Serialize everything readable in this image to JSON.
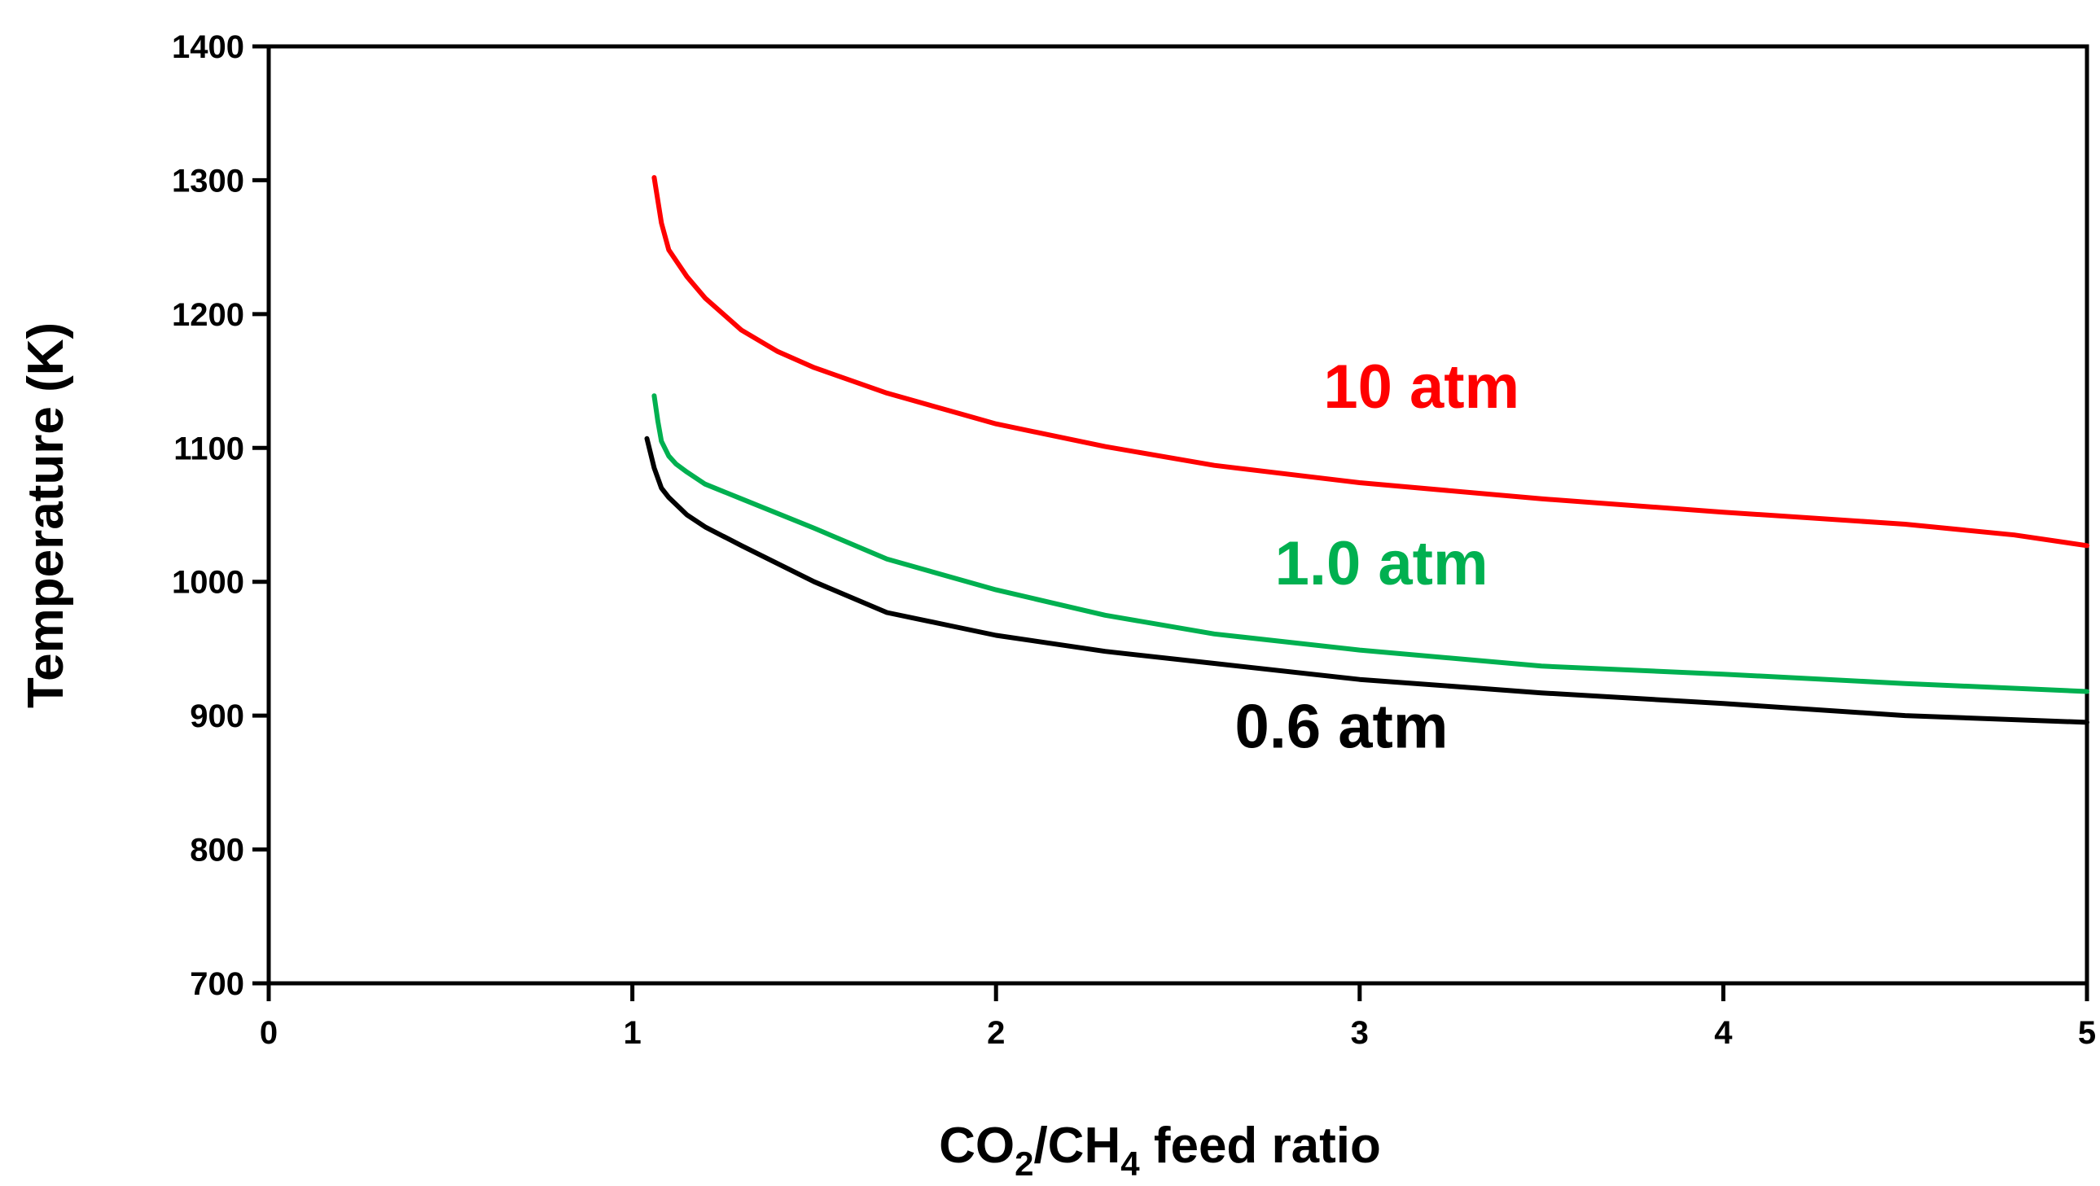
{
  "chart_data": {
    "type": "line",
    "title": "",
    "xlabel": {
      "parts": [
        {
          "text": "CO",
          "sub": false
        },
        {
          "text": "2",
          "sub": true
        },
        {
          "text": "/CH",
          "sub": false
        },
        {
          "text": "4",
          "sub": true
        },
        {
          "text": " feed ratio",
          "sub": false
        }
      ]
    },
    "ylabel": "Temperature (K)",
    "xlim": [
      0,
      5
    ],
    "ylim": [
      700,
      1400
    ],
    "xticks": [
      0,
      1,
      2,
      3,
      4,
      5
    ],
    "yticks": [
      700,
      800,
      900,
      1000,
      1100,
      1200,
      1300,
      1400
    ],
    "grid": false,
    "legend": "inline labels",
    "series": [
      {
        "name": "10 atm",
        "color": "#ff0000",
        "x": [
          1.06,
          1.08,
          1.1,
          1.15,
          1.2,
          1.3,
          1.4,
          1.5,
          1.7,
          2.0,
          2.3,
          2.6,
          3.0,
          3.5,
          4.0,
          4.5,
          4.8,
          5.0
        ],
        "y": [
          1302,
          1268,
          1248,
          1228,
          1212,
          1188,
          1172,
          1160,
          1141,
          1118,
          1101,
          1087,
          1074,
          1062,
          1052,
          1043,
          1035,
          1027
        ]
      },
      {
        "name": "1.0 atm",
        "color": "#00b050",
        "x": [
          1.06,
          1.07,
          1.08,
          1.1,
          1.12,
          1.15,
          1.2,
          1.3,
          1.5,
          1.7,
          2.0,
          2.3,
          2.6,
          3.0,
          3.5,
          4.0,
          4.5,
          5.0
        ],
        "y": [
          1139,
          1120,
          1105,
          1094,
          1088,
          1082,
          1073,
          1062,
          1040,
          1017,
          994,
          975,
          961,
          949,
          937,
          931,
          924,
          918
        ]
      },
      {
        "name": "0.6 atm",
        "color": "#000000",
        "x": [
          1.04,
          1.06,
          1.08,
          1.1,
          1.15,
          1.2,
          1.3,
          1.5,
          1.7,
          2.0,
          2.3,
          2.6,
          3.0,
          3.5,
          4.0,
          4.5,
          5.0
        ],
        "y": [
          1107,
          1085,
          1070,
          1063,
          1050,
          1041,
          1027,
          1000,
          977,
          960,
          948,
          939,
          927,
          917,
          909,
          900,
          895
        ]
      }
    ],
    "annotations": [
      {
        "text": "10 atm",
        "series": 0,
        "x": 3.17,
        "y": 1130
      },
      {
        "text": "1.0 atm",
        "series": 1,
        "x": 3.06,
        "y": 998
      },
      {
        "text": "0.6 atm",
        "series": 2,
        "x": 2.95,
        "y": 876
      }
    ]
  }
}
